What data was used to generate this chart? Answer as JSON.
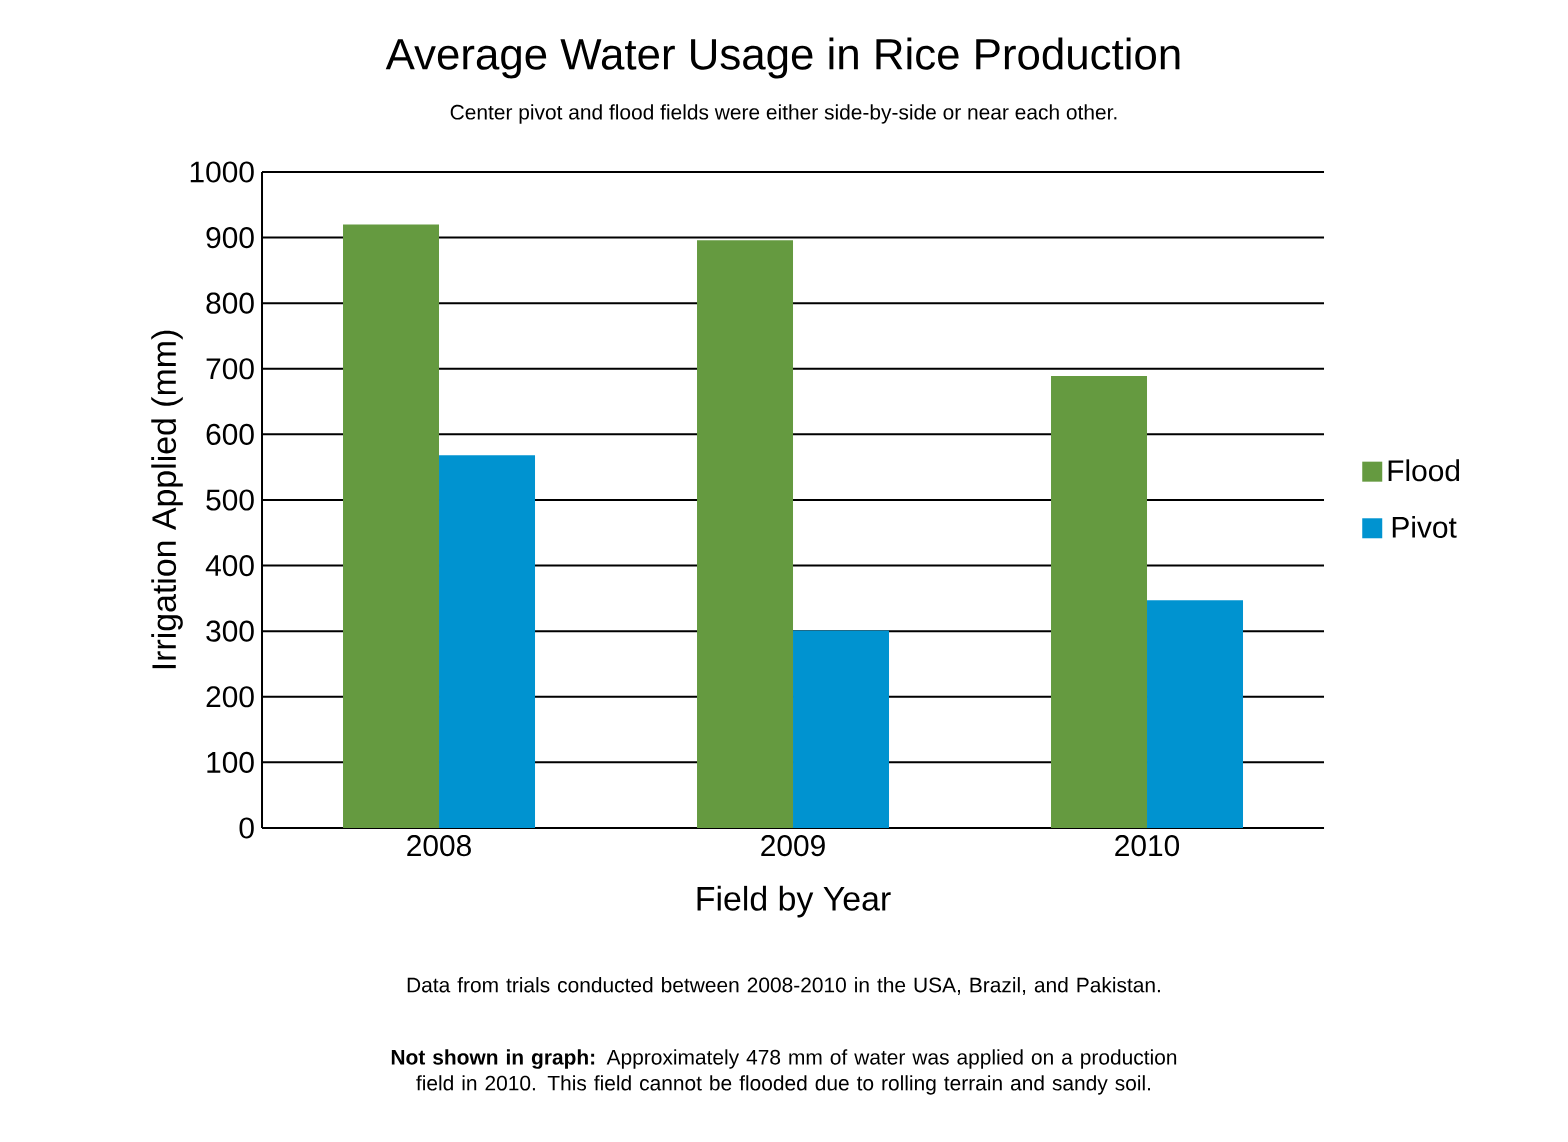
{
  "chart_data": {
    "type": "bar",
    "title": "Average Water Usage in Rice Production",
    "subtitle": "Center pivot and flood fields were either side-by-side or near each other.",
    "xlabel": "Field by Year",
    "ylabel": "Irrigation Applied (mm)",
    "categories": [
      "2008",
      "2009",
      "2010"
    ],
    "series": [
      {
        "name": "Flood",
        "color": "#659a40",
        "values": [
          920,
          896,
          689
        ]
      },
      {
        "name": "Pivot",
        "color": "#0093d0",
        "values": [
          568,
          301,
          347
        ]
      }
    ],
    "ylim": [
      0,
      1000
    ],
    "yticks": [
      0,
      100,
      200,
      300,
      400,
      500,
      600,
      700,
      800,
      900,
      1000
    ],
    "grid": "y",
    "legend": "right",
    "annotations": [
      "Data from trials conducted between 2008-2010 in the USA, Brazil, and Pakistan.",
      "**Not shown in graph:** Approximately 478 mm of water was applied on a production field in 2010. This field cannot be flooded due to rolling terrain and sandy soil."
    ]
  }
}
